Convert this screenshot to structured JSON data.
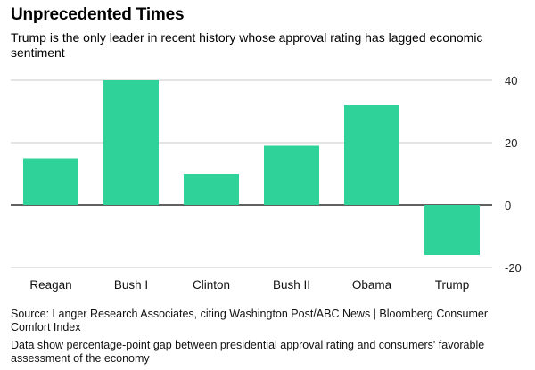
{
  "chart_data": {
    "type": "bar",
    "title": "Unprecedented Times",
    "subtitle": "Trump is the only leader in recent history whose approval rating has lagged economic sentiment",
    "categories": [
      "Reagan",
      "Bush I",
      "Clinton",
      "Bush II",
      "Obama",
      "Trump"
    ],
    "values": [
      15,
      40,
      10,
      19,
      32,
      -16
    ],
    "ylim": [
      -20,
      40
    ],
    "yticks": [
      40,
      20,
      0,
      -20
    ],
    "bar_color": "#2fd39a",
    "grid": true,
    "xlabel": "",
    "ylabel": ""
  },
  "source": "Source: Langer Research Associates, citing Washington Post/ABC News | Bloomberg Consumer Comfort Index",
  "note": "Data show percentage-point gap between presidential approval rating and consumers' favorable assessment of the economy"
}
